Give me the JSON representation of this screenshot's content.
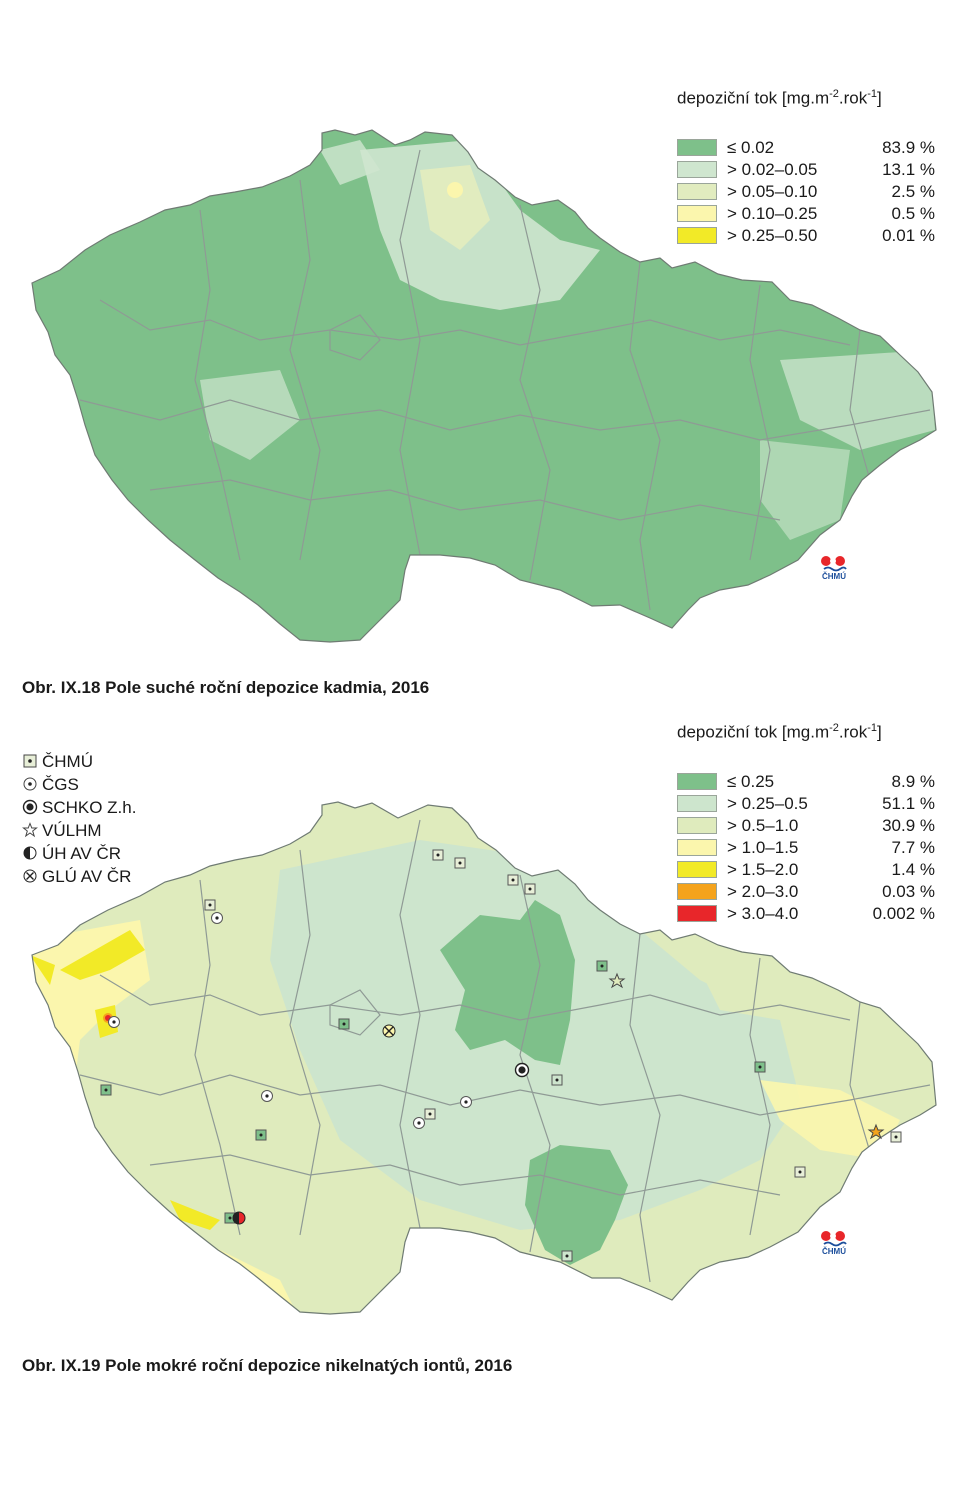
{
  "fig1": {
    "legend": {
      "title_prefix": "depoziční tok [mg.m",
      "title_exp1": "-2",
      "title_mid": ".rok",
      "title_exp2": "-1",
      "title_suffix": "]",
      "classes": [
        {
          "label": "≤ 0.02",
          "percent": "83.9 %",
          "color": "#7ec08a"
        },
        {
          "label": "> 0.02–0.05",
          "percent": "13.1 %",
          "color": "#cfe6cf"
        },
        {
          "label": "> 0.05–0.10",
          "percent": "2.5 %",
          "color": "#e1ecbf"
        },
        {
          "label": "> 0.10–0.25",
          "percent": "0.5 %",
          "color": "#fbf6ad"
        },
        {
          "label": "> 0.25–0.50",
          "percent": "0.01 %",
          "color": "#f2ea27"
        }
      ]
    },
    "caption": "Obr. IX.18  Pole suché roční depozice kadmia, 2016",
    "logo_text": "ČHMÚ"
  },
  "fig2": {
    "legend": {
      "title_prefix": "depoziční tok [mg.m",
      "title_exp1": "-2",
      "title_mid": ".rok",
      "title_exp2": "-1",
      "title_suffix": "]",
      "classes": [
        {
          "label": "≤ 0.25",
          "percent": "8.9 %",
          "color": "#7ec08a"
        },
        {
          "label": "> 0.25–0.5",
          "percent": "51.1 %",
          "color": "#cde5cd"
        },
        {
          "label": "> 0.5–1.0",
          "percent": "30.9 %",
          "color": "#dfebbd"
        },
        {
          "label": "> 1.0–1.5",
          "percent": "7.7 %",
          "color": "#fbf6ad"
        },
        {
          "label": "> 1.5–2.0",
          "percent": "1.4 %",
          "color": "#f2ea27"
        },
        {
          "label": "> 2.0–3.0",
          "percent": "0.03 %",
          "color": "#f4a31c"
        },
        {
          "label": "> 3.0–4.0",
          "percent": "0.002 %",
          "color": "#e8262a"
        }
      ]
    },
    "stations": [
      {
        "label": "ČHMÚ",
        "icon": "square-dot-icon"
      },
      {
        "label": "ČGS",
        "icon": "circle-dot-icon"
      },
      {
        "label": "SCHKO Z.h.",
        "icon": "bullseye-icon"
      },
      {
        "label": "VÚLHM",
        "icon": "star-icon"
      },
      {
        "label": "ÚH AV ČR",
        "icon": "half-circle-icon"
      },
      {
        "label": "GLÚ AV ČR",
        "icon": "circle-x-icon"
      }
    ],
    "caption": "Obr. IX.19  Pole mokré roční depozice nikelnatých iontů, 2016",
    "logo_text": "ČHMÚ"
  }
}
